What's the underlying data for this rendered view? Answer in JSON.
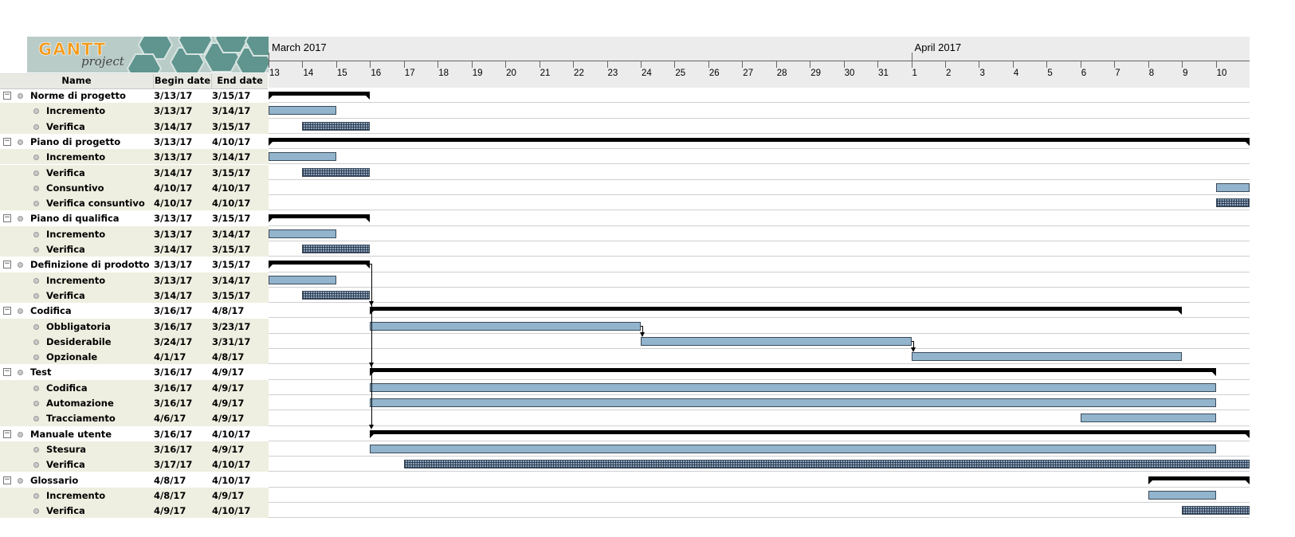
{
  "app": {
    "logo_text": "GANTT",
    "logo_sub": "project"
  },
  "table": {
    "col_name": "Name",
    "col_begin": "Begin date",
    "col_end": "End date"
  },
  "timeline": {
    "months": [
      {
        "label": "March 2017",
        "start_index": 0
      },
      {
        "label": "April 2017",
        "start_index": 19
      }
    ],
    "days": [
      "13",
      "14",
      "15",
      "16",
      "17",
      "18",
      "19",
      "20",
      "21",
      "22",
      "23",
      "24",
      "25",
      "26",
      "27",
      "28",
      "29",
      "30",
      "31",
      "1",
      "2",
      "3",
      "4",
      "5",
      "6",
      "7",
      "8",
      "9",
      "10"
    ]
  },
  "colors": {
    "bar": "#92b4cc",
    "bar_border": "#3b4b5a",
    "summary": "#000000",
    "alt_row": "#efefe1",
    "header_bg": "#ececec"
  },
  "tasks": [
    {
      "name": "Norme di progetto",
      "begin": "3/13/17",
      "end": "3/15/17",
      "level": 0,
      "start": 0,
      "dur": 3,
      "kind": "summary"
    },
    {
      "name": "Incremento",
      "begin": "3/13/17",
      "end": "3/14/17",
      "level": 1,
      "start": 0,
      "dur": 2,
      "kind": "task"
    },
    {
      "name": "Verifica",
      "begin": "3/14/17",
      "end": "3/15/17",
      "level": 1,
      "start": 1,
      "dur": 2,
      "kind": "verify"
    },
    {
      "name": "Piano di progetto",
      "begin": "3/13/17",
      "end": "4/10/17",
      "level": 0,
      "start": 0,
      "dur": 29,
      "kind": "summary"
    },
    {
      "name": "Incremento",
      "begin": "3/13/17",
      "end": "3/14/17",
      "level": 1,
      "start": 0,
      "dur": 2,
      "kind": "task"
    },
    {
      "name": "Verifica",
      "begin": "3/14/17",
      "end": "3/15/17",
      "level": 1,
      "start": 1,
      "dur": 2,
      "kind": "verify"
    },
    {
      "name": "Consuntivo",
      "begin": "4/10/17",
      "end": "4/10/17",
      "level": 1,
      "start": 28,
      "dur": 1,
      "kind": "task"
    },
    {
      "name": "Verifica consuntivo",
      "begin": "4/10/17",
      "end": "4/10/17",
      "level": 1,
      "start": 28,
      "dur": 1,
      "kind": "verify"
    },
    {
      "name": "Piano di qualifica",
      "begin": "3/13/17",
      "end": "3/15/17",
      "level": 0,
      "start": 0,
      "dur": 3,
      "kind": "summary"
    },
    {
      "name": "Incremento",
      "begin": "3/13/17",
      "end": "3/14/17",
      "level": 1,
      "start": 0,
      "dur": 2,
      "kind": "task"
    },
    {
      "name": "Verifica",
      "begin": "3/14/17",
      "end": "3/15/17",
      "level": 1,
      "start": 1,
      "dur": 2,
      "kind": "verify"
    },
    {
      "name": "Definizione di prodotto",
      "begin": "3/13/17",
      "end": "3/15/17",
      "level": 0,
      "start": 0,
      "dur": 3,
      "kind": "summary"
    },
    {
      "name": "Incremento",
      "begin": "3/13/17",
      "end": "3/14/17",
      "level": 1,
      "start": 0,
      "dur": 2,
      "kind": "task"
    },
    {
      "name": "Verifica",
      "begin": "3/14/17",
      "end": "3/15/17",
      "level": 1,
      "start": 1,
      "dur": 2,
      "kind": "verify"
    },
    {
      "name": "Codifica",
      "begin": "3/16/17",
      "end": "4/8/17",
      "level": 0,
      "start": 3,
      "dur": 24,
      "kind": "summary"
    },
    {
      "name": "Obbligatoria",
      "begin": "3/16/17",
      "end": "3/23/17",
      "level": 1,
      "start": 3,
      "dur": 8,
      "kind": "task"
    },
    {
      "name": "Desiderabile",
      "begin": "3/24/17",
      "end": "3/31/17",
      "level": 1,
      "start": 11,
      "dur": 8,
      "kind": "task"
    },
    {
      "name": "Opzionale",
      "begin": "4/1/17",
      "end": "4/8/17",
      "level": 1,
      "start": 19,
      "dur": 8,
      "kind": "task"
    },
    {
      "name": "Test",
      "begin": "3/16/17",
      "end": "4/9/17",
      "level": 0,
      "start": 3,
      "dur": 25,
      "kind": "summary"
    },
    {
      "name": "Codifica",
      "begin": "3/16/17",
      "end": "4/9/17",
      "level": 1,
      "start": 3,
      "dur": 25,
      "kind": "task"
    },
    {
      "name": "Automazione",
      "begin": "3/16/17",
      "end": "4/9/17",
      "level": 1,
      "start": 3,
      "dur": 25,
      "kind": "task"
    },
    {
      "name": "Tracciamento",
      "begin": "4/6/17",
      "end": "4/9/17",
      "level": 1,
      "start": 24,
      "dur": 4,
      "kind": "task"
    },
    {
      "name": "Manuale utente",
      "begin": "3/16/17",
      "end": "4/10/17",
      "level": 0,
      "start": 3,
      "dur": 26,
      "kind": "summary"
    },
    {
      "name": "Stesura",
      "begin": "3/16/17",
      "end": "4/9/17",
      "level": 1,
      "start": 3,
      "dur": 25,
      "kind": "task"
    },
    {
      "name": "Verifica",
      "begin": "3/17/17",
      "end": "4/10/17",
      "level": 1,
      "start": 4,
      "dur": 25,
      "kind": "verify"
    },
    {
      "name": "Glossario",
      "begin": "4/8/17",
      "end": "4/10/17",
      "level": 0,
      "start": 26,
      "dur": 3,
      "kind": "summary"
    },
    {
      "name": "Incremento",
      "begin": "4/8/17",
      "end": "4/9/17",
      "level": 1,
      "start": 26,
      "dur": 2,
      "kind": "task"
    },
    {
      "name": "Verifica",
      "begin": "4/9/17",
      "end": "4/10/17",
      "level": 1,
      "start": 27,
      "dur": 2,
      "kind": "verify"
    }
  ],
  "dependencies": [
    {
      "from": 11,
      "to": 14
    },
    {
      "from": 11,
      "to": 18
    },
    {
      "from": 11,
      "to": 22
    },
    {
      "from": 15,
      "to": 16
    },
    {
      "from": 16,
      "to": 17
    }
  ]
}
